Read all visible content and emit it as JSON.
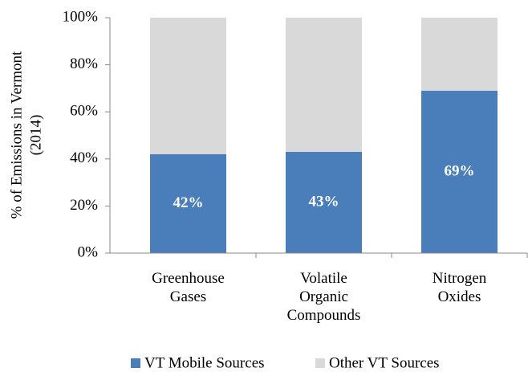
{
  "chart_data": {
    "type": "stacked_bar",
    "ylabel": [
      "% of Emissions in Vermont",
      "(2014)"
    ],
    "categories": [
      "Greenhouse Gases",
      "Volatile Organic Compounds",
      "Nitrogen Oxides"
    ],
    "series": [
      {
        "name": "VT Mobile Sources",
        "color": "#4a7ebb",
        "values": [
          42,
          43,
          69
        ],
        "value_labels": [
          "42%",
          "43%",
          "69%"
        ]
      },
      {
        "name": "Other VT Sources",
        "color": "#d9d9d9",
        "values": [
          58,
          57,
          31
        ]
      }
    ],
    "ylim": [
      0,
      100
    ],
    "yticks": [
      {
        "value": 0,
        "label": "0%"
      },
      {
        "value": 20,
        "label": "20%"
      },
      {
        "value": 40,
        "label": "40%"
      },
      {
        "value": 60,
        "label": "60%"
      },
      {
        "value": 80,
        "label": "80%"
      },
      {
        "value": 100,
        "label": "100%"
      }
    ],
    "legend": "bottom"
  }
}
